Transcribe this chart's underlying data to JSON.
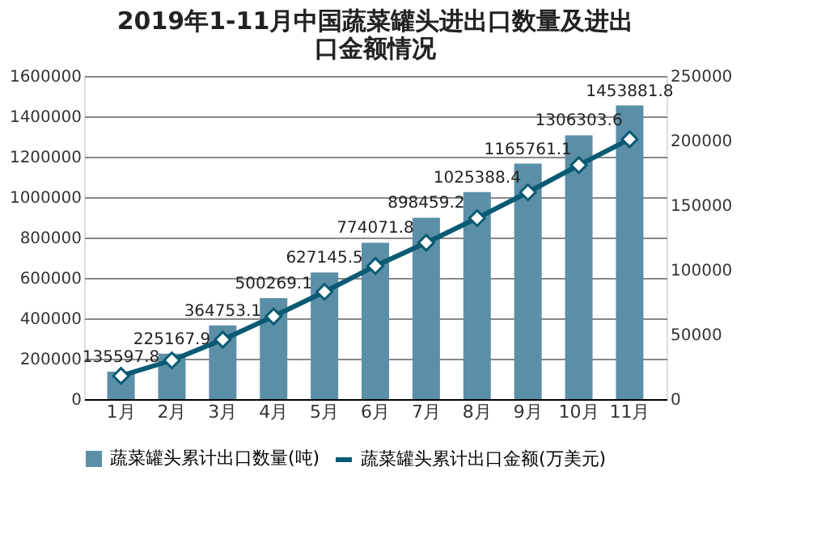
{
  "chart_data": {
    "type": "bar",
    "title": "2019年1-11月中国蔬菜罐头进出口数量及进出口金额情况",
    "categories": [
      "1月",
      "2月",
      "3月",
      "4月",
      "5月",
      "6月",
      "7月",
      "8月",
      "9月",
      "10月",
      "11月"
    ],
    "series": [
      {
        "name": "蔬菜罐头累计出口数量(吨)",
        "color": "#5b8fa8",
        "values": [
          135597.8,
          225167.9,
          364753.1,
          500269.1,
          627145.5,
          774071.8,
          898459.2,
          1025388.4,
          1165761.1,
          1306303.6,
          1453881.8
        ],
        "value_labels": [
          "135597.8",
          "225167.9",
          "364753.1",
          "500269.1",
          "627145.5",
          "774071.8",
          "898459.2",
          "1025388.4",
          "1165761.1",
          "1306303.6",
          "1453881.8"
        ]
      },
      {
        "name": "蔬菜罐头累计出口金额(万美元)",
        "type": "line",
        "axis": "y2",
        "color": "#0b5a73",
        "marker": "diamond",
        "values": [
          18000,
          30000,
          46000,
          64000,
          83000,
          103000,
          121000,
          140000,
          160000,
          181000,
          201000
        ]
      }
    ],
    "ylim": [
      0,
      1600000
    ],
    "yticks": [
      0,
      200000,
      400000,
      600000,
      800000,
      1000000,
      1200000,
      1400000,
      1600000
    ],
    "y2lim": [
      0,
      250000
    ],
    "y2ticks": [
      0,
      50000,
      100000,
      150000,
      200000,
      250000
    ],
    "grid": "y",
    "legend": "bottom"
  }
}
